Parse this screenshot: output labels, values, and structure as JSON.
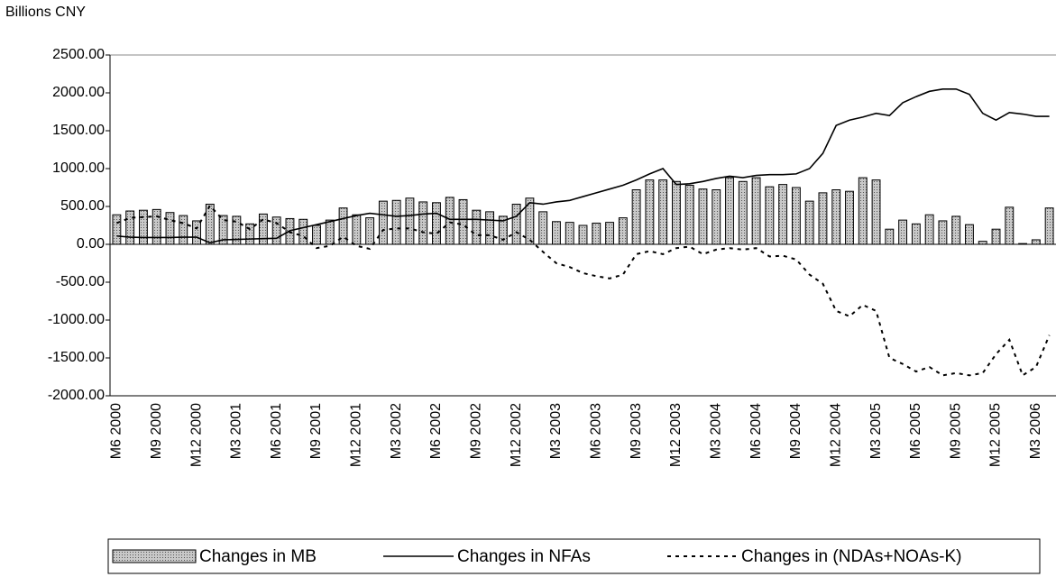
{
  "chart_data": {
    "type": "bar_line",
    "y_axis_label": "Billions CNY",
    "categories": [
      "M6 2000",
      null,
      null,
      "M9 2000",
      null,
      null,
      "M12 2000",
      null,
      null,
      "M3 2001",
      null,
      null,
      "M6 2001",
      null,
      null,
      "M9 2001",
      null,
      null,
      "M12 2001",
      null,
      null,
      "M3 2002",
      null,
      null,
      "M6 2002",
      null,
      null,
      "M9 2002",
      null,
      null,
      "M12 2002",
      null,
      null,
      "M3 2003",
      null,
      null,
      "M6 2003",
      null,
      null,
      "M9 2003",
      null,
      null,
      "M12 2003",
      null,
      null,
      "M3 2004",
      null,
      null,
      "M6 2004",
      null,
      null,
      "M9 2004",
      null,
      null,
      "M12 2004",
      null,
      null,
      "M3 2005",
      null,
      null,
      "M6 2005",
      null,
      null,
      "M9 2005",
      null,
      null,
      "M12 2005",
      null,
      null,
      "M3 2006",
      null
    ],
    "series": [
      {
        "name": "Changes in MB",
        "type": "bar",
        "color": "#9a9a9a",
        "values": [
          390,
          440,
          450,
          460,
          420,
          380,
          310,
          530,
          380,
          370,
          270,
          400,
          360,
          340,
          330,
          250,
          320,
          480,
          390,
          350,
          570,
          580,
          610,
          560,
          550,
          620,
          590,
          450,
          430,
          370,
          530,
          610,
          430,
          300,
          290,
          250,
          280,
          290,
          350,
          720,
          850,
          850,
          830,
          780,
          730,
          720,
          880,
          830,
          880,
          760,
          790,
          750,
          570,
          680,
          720,
          700,
          880,
          850,
          200,
          320,
          270,
          390,
          310,
          370,
          260,
          40,
          200,
          490,
          10,
          60,
          480
        ]
      },
      {
        "name": "Changes in NFAs",
        "type": "line",
        "color": "#000000",
        "dash": "solid",
        "values": [
          110,
          95,
          90,
          90,
          90,
          95,
          95,
          20,
          60,
          65,
          70,
          75,
          80,
          180,
          220,
          260,
          300,
          340,
          380,
          410,
          390,
          370,
          380,
          400,
          410,
          330,
          330,
          330,
          320,
          310,
          370,
          550,
          530,
          560,
          580,
          630,
          680,
          730,
          780,
          850,
          930,
          1000,
          790,
          800,
          830,
          870,
          900,
          880,
          910,
          920,
          920,
          930,
          1000,
          1200,
          1570,
          1640,
          1680,
          1730,
          1700,
          1870,
          1950,
          2020,
          2050,
          2050,
          1980,
          1730,
          1640,
          1740,
          1720,
          1690,
          1690
        ]
      },
      {
        "name": "Changes in (NDAs+NOAs-K)",
        "type": "line",
        "color": "#000000",
        "dash": "dashed",
        "values": [
          280,
          350,
          360,
          370,
          320,
          280,
          210,
          510,
          320,
          300,
          200,
          330,
          280,
          160,
          110,
          -50,
          -20,
          100,
          -20,
          -60,
          190,
          210,
          210,
          160,
          140,
          290,
          260,
          120,
          120,
          60,
          160,
          60,
          -100,
          -250,
          -300,
          -380,
          -420,
          -450,
          -400,
          -130,
          -90,
          -130,
          -50,
          -30,
          -130,
          -70,
          -50,
          -70,
          -50,
          -160,
          -150,
          -200,
          -400,
          -520,
          -880,
          -950,
          -800,
          -880,
          -1500,
          -1580,
          -1680,
          -1620,
          -1730,
          -1700,
          -1730,
          -1700,
          -1450,
          -1260,
          -1730,
          -1620,
          -1200
        ]
      }
    ],
    "ylim": [
      -2000,
      2500
    ],
    "yticks": [
      {
        "value": 2500,
        "label": "2500.00"
      },
      {
        "value": 2000,
        "label": "2000.00"
      },
      {
        "value": 1500,
        "label": "1500.00"
      },
      {
        "value": 1000,
        "label": "1000.00"
      },
      {
        "value": 500,
        "label": "500.00"
      },
      {
        "value": 0,
        "label": "0.00"
      },
      {
        "value": -500,
        "label": "-500.00"
      },
      {
        "value": -1000,
        "label": "-1000.00"
      },
      {
        "value": -1500,
        "label": "-1500.00"
      },
      {
        "value": -2000,
        "label": "-2000.00"
      }
    ],
    "grid": false,
    "legend": "bottom"
  }
}
